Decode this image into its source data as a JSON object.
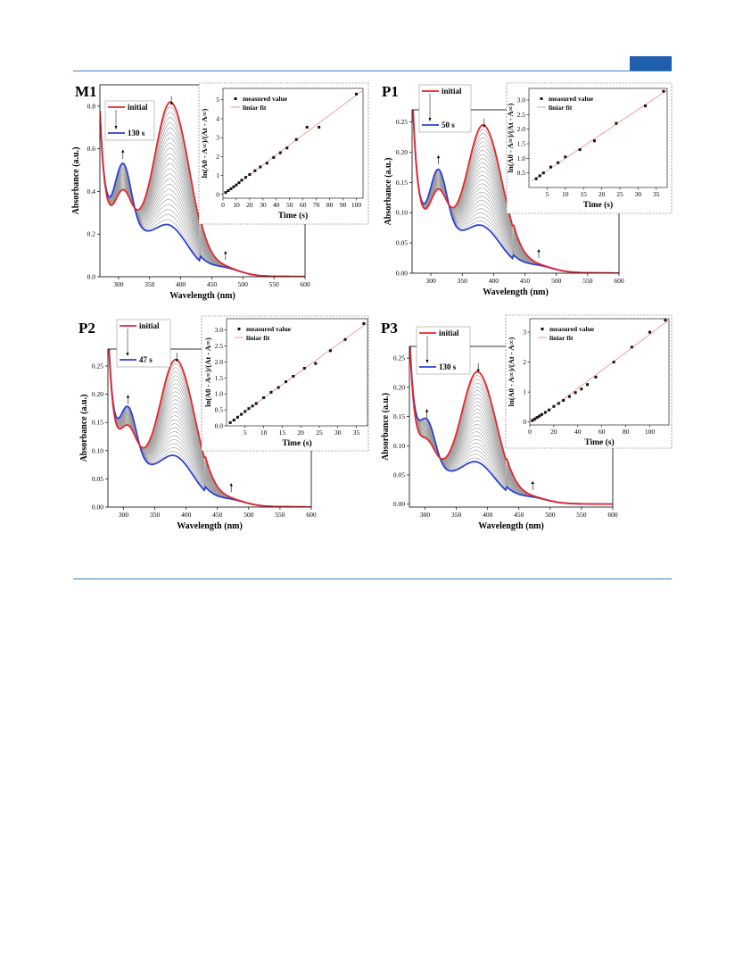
{
  "chart_data": [
    {
      "panel": "M1",
      "type": "line",
      "xlabel": "Wavelength (nm)",
      "ylabel": "Absorbance (a.u.)",
      "xlim": [
        270,
        600
      ],
      "ylim": [
        0,
        0.9
      ],
      "xticks": [
        "300",
        "350",
        "400",
        "450",
        "500",
        "550",
        "600"
      ],
      "yticks": [
        "0.0",
        "0.2",
        "0.4",
        "0.6",
        "0.8"
      ],
      "legend": {
        "start": "initial",
        "end": "130 s"
      },
      "peaks": {
        "main_x": 385,
        "main_initial": 0.78,
        "main_final": 0.2,
        "short_x": 307,
        "short_initial": 0.39,
        "short_final": 0.52,
        "short_base": 0.4,
        "max_y_at_start": 0.64,
        "iso_x": 330
      },
      "inset": {
        "xlabel": "Time (s)",
        "ylabel": "ln(A0 - A∞)/(At - A∞)",
        "xlim": [
          0,
          105
        ],
        "ylim": [
          -0.2,
          5.6
        ],
        "xticks": [
          "0",
          "10",
          "20",
          "30",
          "40",
          "50",
          "60",
          "70",
          "80",
          "90",
          "100"
        ],
        "yticks": [
          "0",
          "1",
          "2",
          "3",
          "4",
          "5"
        ],
        "legend": [
          "measured value",
          "liniar fit"
        ],
        "x": [
          2,
          4,
          6,
          8,
          10,
          12,
          14,
          17,
          20,
          24,
          28,
          33,
          38,
          43,
          48,
          55,
          63,
          72,
          100
        ],
        "y": [
          0.1,
          0.2,
          0.3,
          0.4,
          0.5,
          0.62,
          0.75,
          0.9,
          1.05,
          1.25,
          1.45,
          1.65,
          1.95,
          2.2,
          2.45,
          2.9,
          3.55,
          3.55,
          5.3
        ]
      }
    },
    {
      "panel": "P1",
      "type": "line",
      "xlabel": "Wavelength (nm)",
      "ylabel": "Absorbance (a.u.)",
      "xlim": [
        270,
        600
      ],
      "ylim": [
        0,
        0.27
      ],
      "xticks": [
        "300",
        "350",
        "400",
        "450",
        "500",
        "550",
        "600"
      ],
      "yticks": [
        "0.00",
        "0.05",
        "0.10",
        "0.15",
        "0.20",
        "0.25"
      ],
      "legend": {
        "start": "initial",
        "end": "50 s"
      },
      "peaks": {
        "main_x": 385,
        "main_initial": 0.232,
        "main_final": 0.065,
        "short_x": 312,
        "short_initial": 0.132,
        "short_final": 0.168,
        "short_base": 0.13,
        "max_y_at_start": 0.265,
        "iso_x": 337
      },
      "inset": {
        "xlabel": "Time (s)",
        "ylabel": "ln(A0 - A∞)/(At - A∞)",
        "xlim": [
          0,
          38
        ],
        "ylim": [
          0,
          3.4
        ],
        "xticks": [
          "5",
          "10",
          "15",
          "20",
          "25",
          "30",
          "35"
        ],
        "yticks": [
          "0.5",
          "1.0",
          "1.5",
          "2.0",
          "2.5",
          "3.0"
        ],
        "legend": [
          "measured value",
          "liniar fit"
        ],
        "x": [
          2,
          3,
          4,
          6,
          8,
          10,
          14,
          18,
          24,
          32,
          37
        ],
        "y": [
          0.3,
          0.4,
          0.5,
          0.7,
          0.85,
          1.05,
          1.3,
          1.6,
          2.2,
          2.8,
          3.3
        ]
      }
    },
    {
      "panel": "P2",
      "type": "line",
      "xlabel": "Wavelength (nm)",
      "ylabel": "Absorbance (a.u.)",
      "xlim": [
        275,
        600
      ],
      "ylim": [
        0,
        0.28
      ],
      "xticks": [
        "300",
        "350",
        "400",
        "450",
        "500",
        "550",
        "600"
      ],
      "yticks": [
        "0.00",
        "0.05",
        "0.10",
        "0.15",
        "0.20",
        "0.25"
      ],
      "legend": {
        "start": "initial",
        "end": "47 s"
      },
      "peaks": {
        "main_x": 385,
        "main_initial": 0.248,
        "main_final": 0.077,
        "short_x": 307,
        "short_initial": 0.135,
        "short_final": 0.17,
        "short_base": 0.135,
        "max_y_at_start": 0.27,
        "iso_x": 333
      },
      "inset": {
        "xlabel": "Time (s)",
        "ylabel": "ln(A0 - A∞)/(At - A∞)",
        "xlim": [
          0,
          38
        ],
        "ylim": [
          0,
          3.35
        ],
        "xticks": [
          "5",
          "10",
          "15",
          "20",
          "25",
          "30",
          "35"
        ],
        "yticks": [
          "0.0",
          "0.5",
          "1.0",
          "1.5",
          "2.0",
          "2.5",
          "3.0"
        ],
        "legend": [
          "measured value",
          "liniar fit"
        ],
        "x": [
          1,
          2,
          3,
          4,
          5,
          6,
          7,
          8,
          10,
          12,
          14,
          16,
          18,
          21,
          24,
          28,
          32,
          37
        ],
        "y": [
          0.1,
          0.18,
          0.27,
          0.36,
          0.45,
          0.54,
          0.62,
          0.7,
          0.88,
          1.05,
          1.2,
          1.38,
          1.55,
          1.8,
          1.95,
          2.35,
          2.7,
          3.2
        ]
      }
    },
    {
      "panel": "P3",
      "type": "line",
      "xlabel": "Wavelength (nm)",
      "ylabel": "Absorbance (a.u.)",
      "xlim": [
        275,
        600
      ],
      "ylim": [
        -0.005,
        0.27
      ],
      "xticks": [
        "300",
        "350",
        "400",
        "450",
        "500",
        "550",
        "600"
      ],
      "yticks": [
        "0.00",
        "0.05",
        "0.10",
        "0.15",
        "0.20",
        "0.25"
      ],
      "legend": {
        "start": "initial",
        "end": "130 s"
      },
      "peaks": {
        "main_x": 385,
        "main_initial": 0.217,
        "main_final": 0.062,
        "short_x": 303,
        "short_initial": 0.1,
        "short_final": 0.135,
        "short_base": 0.1,
        "max_y_at_start": 0.25,
        "iso_x": 335
      },
      "inset": {
        "xlabel": "Time (s)",
        "ylabel": "ln(A0 - A∞)/(At - A∞)",
        "xlim": [
          0,
          116
        ],
        "ylim": [
          -0.1,
          3.45
        ],
        "xticks": [
          "0",
          "20",
          "40",
          "60",
          "80",
          "100"
        ],
        "yticks": [
          "0",
          "1",
          "2",
          "3"
        ],
        "legend": [
          "measured value",
          "liniar fit"
        ],
        "x": [
          2,
          4,
          6,
          8,
          10,
          13,
          16,
          20,
          24,
          28,
          33,
          38,
          43,
          48,
          55,
          70,
          85,
          100,
          113
        ],
        "y": [
          0.05,
          0.1,
          0.15,
          0.2,
          0.25,
          0.32,
          0.4,
          0.52,
          0.62,
          0.72,
          0.85,
          0.98,
          1.1,
          1.25,
          1.5,
          2.0,
          2.5,
          3.0,
          3.4
        ]
      }
    }
  ]
}
